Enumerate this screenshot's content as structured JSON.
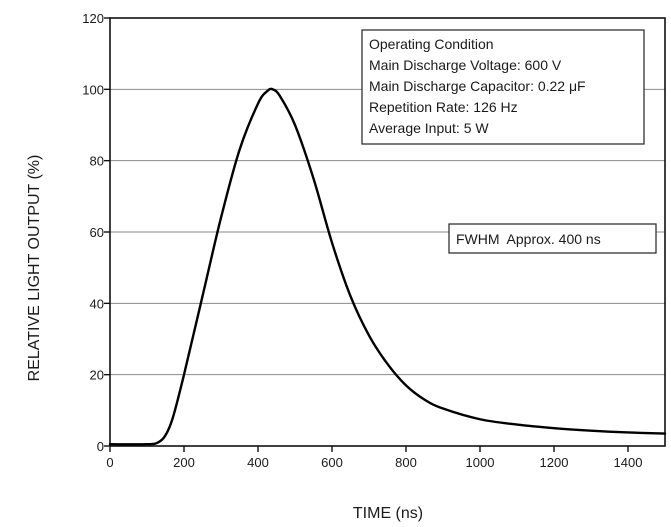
{
  "chart_data": {
    "type": "line",
    "xlabel": "TIME (ns)",
    "ylabel": "RELATIVE LIGHT OUTPUT (%)",
    "xlim": [
      0,
      1500
    ],
    "ylim": [
      0,
      120
    ],
    "xticks": [
      0,
      200,
      400,
      600,
      800,
      1000,
      1200,
      1400
    ],
    "yticks": [
      0,
      20,
      40,
      60,
      80,
      100,
      120
    ],
    "grid": "horizontal",
    "series": [
      {
        "color": "#000000",
        "x": [
          0,
          100,
          130,
          150,
          170,
          200,
          250,
          300,
          350,
          400,
          425,
          440,
          460,
          500,
          550,
          600,
          650,
          700,
          750,
          800,
          850,
          900,
          1000,
          1100,
          1200,
          1300,
          1400,
          1500
        ],
        "y": [
          0.5,
          0.5,
          1,
          3,
          8,
          20,
          42,
          64,
          83,
          96,
          99.5,
          100,
          98,
          90,
          75,
          57,
          42,
          31,
          23,
          17,
          13,
          10.5,
          7.5,
          6,
          5,
          4.3,
          3.8,
          3.5
        ]
      }
    ],
    "annotations": {
      "operating_condition": [
        "Operating Condition",
        "Main Discharge Voltage: 600 V",
        "Main Discharge Capacitor: 0.22 μF",
        "Repetition Rate: 126 Hz",
        "Average Input: 5 W"
      ],
      "fwhm": "FWHM  Approx. 400 ns"
    }
  }
}
